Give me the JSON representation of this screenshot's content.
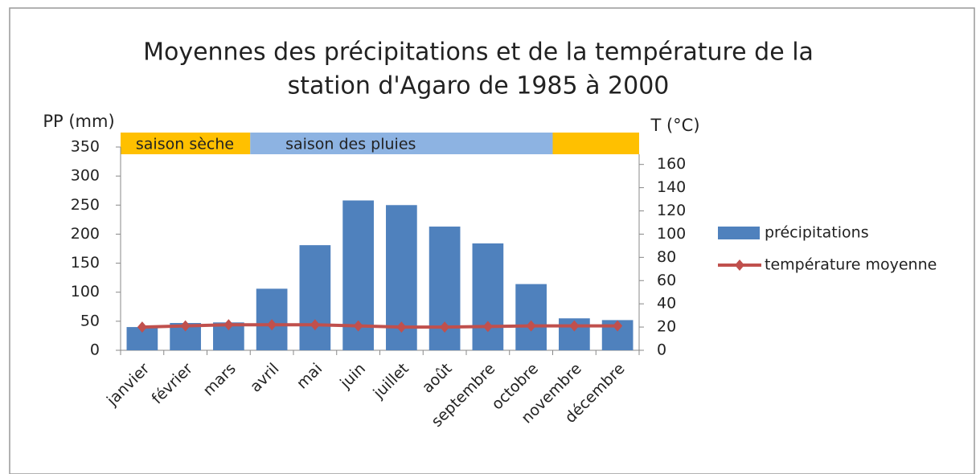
{
  "chart_data": {
    "type": "bar-line",
    "title": [
      "Moyennes des précipitations et de la température de la",
      "station d'Agaro de 1985 à 2000"
    ],
    "y_label": "PP (mm)",
    "y2_label": "T (°C)",
    "categories": [
      "janvier",
      "février",
      "mars",
      "avril",
      "mai",
      "juin",
      "juillet",
      "août",
      "septembre",
      "octobre",
      "novembre",
      "décembre"
    ],
    "series": [
      {
        "name": "précipitations",
        "type": "bar",
        "color": "#4f81bd",
        "values": [
          40,
          47,
          48,
          106,
          181,
          258,
          250,
          213,
          184,
          114,
          55,
          52
        ]
      },
      {
        "name": "température moyenne",
        "type": "line",
        "axis": "y2",
        "color": "#c0504d",
        "values": [
          20,
          21,
          22,
          22,
          22,
          21,
          20,
          20,
          20.5,
          21,
          21,
          21
        ]
      }
    ],
    "ylim": [
      0,
      350
    ],
    "yticks": [
      0,
      50,
      100,
      150,
      200,
      250,
      300,
      350
    ],
    "y2lim": [
      0,
      175
    ],
    "y2ticks": [
      0,
      20,
      40,
      60,
      80,
      100,
      120,
      140,
      160
    ],
    "seasons": [
      {
        "label": "saison sèche",
        "from": "janvier",
        "to": "mars",
        "color": "#ffc000"
      },
      {
        "label": "saison des pluies",
        "from": "avril",
        "to": "octobre",
        "color": "#8db3e2"
      },
      {
        "from": "novembre",
        "to": "décembre",
        "color": "#ffc000"
      }
    ],
    "legend": "right"
  }
}
